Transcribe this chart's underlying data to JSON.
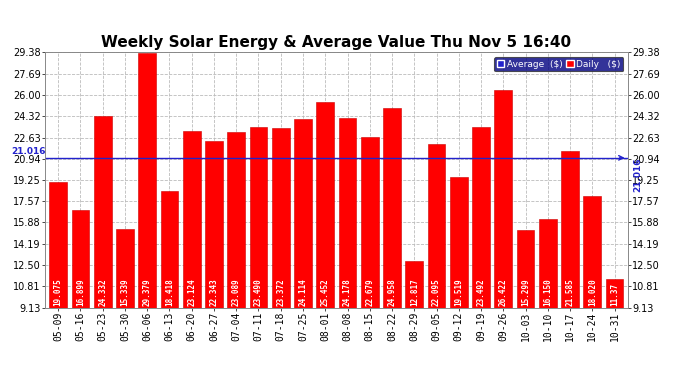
{
  "title": "Weekly Solar Energy & Average Value Thu Nov 5 16:40",
  "categories": [
    "05-09",
    "05-16",
    "05-23",
    "05-30",
    "06-06",
    "06-13",
    "06-20",
    "06-27",
    "07-04",
    "07-11",
    "07-18",
    "07-25",
    "08-01",
    "08-08",
    "08-15",
    "08-22",
    "08-29",
    "09-05",
    "09-12",
    "09-19",
    "09-26",
    "10-03",
    "10-10",
    "10-17",
    "10-24",
    "10-31"
  ],
  "values": [
    19.075,
    16.899,
    24.332,
    15.339,
    29.379,
    18.418,
    23.124,
    22.343,
    23.089,
    23.49,
    23.372,
    24.114,
    25.452,
    24.178,
    22.679,
    24.958,
    12.817,
    22.095,
    19.519,
    23.492,
    26.422,
    15.299,
    16.15,
    21.585,
    18.02,
    11.37
  ],
  "value_labels": [
    "19.075",
    "16.899",
    "24.332",
    "15.339",
    "29.379",
    "18.418",
    "23.124",
    "22.343",
    "23.089",
    "23.490",
    "23.372",
    "24.114",
    "25.452",
    "24.178",
    "22.679",
    "24.958",
    "12.817",
    "22.095",
    "19.519",
    "23.492",
    "26.422",
    "15.299",
    "16.150",
    "21.585",
    "18.020",
    "11.37"
  ],
  "average": 21.016,
  "bar_color": "#ff0000",
  "bar_edge_color": "#cc0000",
  "average_line_color": "#2222cc",
  "background_color": "#ffffff",
  "plot_bg_color": "#ffffff",
  "grid_color": "#bbbbbb",
  "ylim_min": 9.13,
  "ylim_max": 29.38,
  "yticks": [
    9.13,
    10.81,
    12.5,
    14.19,
    15.88,
    17.57,
    19.25,
    20.94,
    22.63,
    24.32,
    26.0,
    27.69,
    29.38
  ],
  "ytick_labels": [
    "9.13",
    "10.81",
    "12.50",
    "14.19",
    "15.88",
    "17.57",
    "19.25",
    "20.94",
    "22.63",
    "24.32",
    "26.00",
    "27.69",
    "29.38"
  ],
  "title_fontsize": 11,
  "tick_fontsize": 7,
  "bar_label_fontsize": 5.5,
  "legend_labels": [
    "Average  ($)",
    "Daily   ($)"
  ],
  "legend_colors": [
    "#2222cc",
    "#ff0000"
  ]
}
